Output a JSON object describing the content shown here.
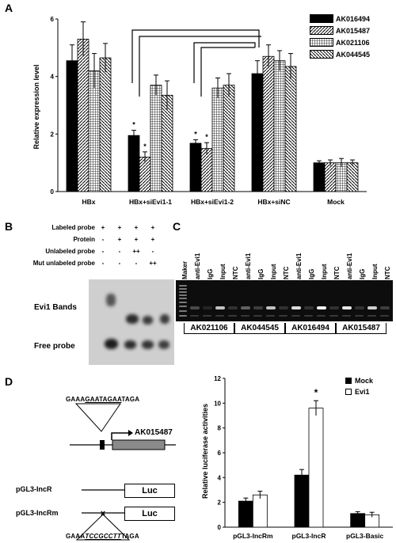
{
  "panels": {
    "A": "A",
    "B": "B",
    "C": "C",
    "D": "D"
  },
  "colors": {
    "black": "#000000",
    "white": "#ffffff",
    "blot_bg": "#cfcfcf",
    "gel_bg": "#0d0d0d"
  },
  "chart_data": [
    {
      "type": "bar",
      "id": "A",
      "ylabel": "Relative expression level",
      "ylim": [
        0,
        6
      ],
      "yticks": [
        0,
        2,
        4,
        6
      ],
      "categories": [
        "HBx",
        "HBx+siEvi1-1",
        "HBx+siEvi1-2",
        "HBx+siNC",
        "Mock"
      ],
      "series": [
        {
          "name": "AK016494",
          "pattern": "solid-black",
          "values": [
            4.55,
            1.95,
            1.68,
            4.1,
            1.0
          ],
          "errors": [
            0.55,
            0.18,
            0.12,
            0.45,
            0.07
          ]
        },
        {
          "name": "AK015487",
          "pattern": "diag-right",
          "values": [
            5.3,
            1.2,
            1.5,
            4.7,
            1.0
          ],
          "errors": [
            0.6,
            0.18,
            0.2,
            0.4,
            0.1
          ]
        },
        {
          "name": "AK021106",
          "pattern": "grid",
          "values": [
            4.2,
            3.7,
            3.6,
            4.55,
            1.0
          ],
          "errors": [
            0.6,
            0.35,
            0.35,
            0.35,
            0.15
          ]
        },
        {
          "name": "AK044545",
          "pattern": "diag-left",
          "values": [
            4.65,
            3.35,
            3.7,
            4.35,
            1.0
          ],
          "errors": [
            0.5,
            0.5,
            0.4,
            0.45,
            0.1
          ]
        }
      ],
      "annotations": [
        "*",
        "*",
        "*",
        "*"
      ]
    },
    {
      "type": "bar",
      "id": "D",
      "ylabel": "Relative luciferase activities",
      "ylim": [
        0,
        12
      ],
      "yticks": [
        0,
        2,
        4,
        6,
        8,
        10,
        12
      ],
      "categories": [
        "pGL3-IncRm",
        "pGL3-IncR",
        "pGL3-Basic"
      ],
      "series": [
        {
          "name": "Mock",
          "pattern": "solid-black",
          "values": [
            2.1,
            4.2,
            1.1
          ],
          "errors": [
            0.25,
            0.45,
            0.15
          ]
        },
        {
          "name": "Evi1",
          "pattern": "white",
          "values": [
            2.6,
            9.6,
            1.0
          ],
          "errors": [
            0.3,
            0.6,
            0.2
          ]
        }
      ],
      "annotations": [
        "*"
      ]
    }
  ],
  "emsa": {
    "rows": [
      {
        "label": "Labeled probe",
        "marks": [
          "+",
          "+",
          "+",
          "+"
        ]
      },
      {
        "label": "Protein",
        "marks": [
          "-",
          "+",
          "+",
          "+"
        ]
      },
      {
        "label": "Unlabeled probe",
        "marks": [
          "-",
          "-",
          "++",
          "-"
        ]
      },
      {
        "label": "Mut unlabeled probe",
        "marks": [
          "-",
          "-",
          "-",
          "++"
        ]
      }
    ],
    "band_label": "Evi1 Bands",
    "free_label": "Free probe"
  },
  "chip": {
    "maker": "Maker",
    "lane_labels": [
      "anti-Evi1",
      "IgG",
      "Input",
      "NTC"
    ],
    "groups": [
      "AK021106",
      "AK044545",
      "AK016494",
      "AK015487"
    ]
  },
  "construct": {
    "wt_seq_prefix": "GAAA",
    "wt_seq_site": "GAATAGAA",
    "wt_seq_suffix": "TAGA",
    "gene": "AK015487",
    "reporter_wt": "pGL3-IncR",
    "reporter_mut": "pGL3-IncRm",
    "luc": "Luc",
    "mut_seq_prefix": "GAAA",
    "mut_seq_site": "TCCGCCTT",
    "mut_seq_suffix": "TAGA"
  }
}
